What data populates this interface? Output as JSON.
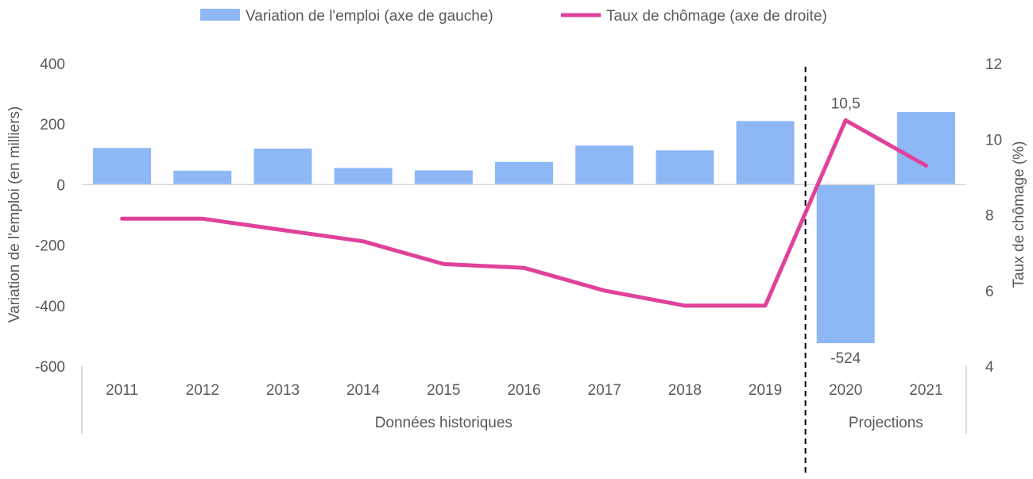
{
  "chart_data": {
    "type": "bar",
    "categories": [
      "2011",
      "2012",
      "2013",
      "2014",
      "2015",
      "2016",
      "2017",
      "2018",
      "2019",
      "2020",
      "2021"
    ],
    "series": [
      {
        "name": "Variation de l'emploi (axe de gauche)",
        "type": "bar",
        "axis": "left",
        "color": "#8db8f5",
        "values": [
          121,
          46,
          119,
          55,
          47,
          75,
          129,
          113,
          210,
          -524,
          240
        ]
      },
      {
        "name": "Taux de chômage (axe de droite)",
        "type": "line",
        "axis": "right",
        "color": "#e0429a",
        "values": [
          7.9,
          7.9,
          7.6,
          7.3,
          6.7,
          6.6,
          6.0,
          5.6,
          5.6,
          10.5,
          9.3
        ]
      }
    ],
    "left_axis": {
      "title": "Variation de l'emploi (en milliers)",
      "range": [
        -600,
        400
      ],
      "ticks": [
        "400",
        "200",
        "0",
        "-200",
        "-400",
        "-600"
      ]
    },
    "right_axis": {
      "title": "Taux de chômage (%)",
      "range": [
        4,
        12
      ],
      "ticks": [
        "12",
        "10",
        "8",
        "6",
        "4"
      ]
    },
    "groups": [
      {
        "label": "Données historiques",
        "from": "2011",
        "to": "2019"
      },
      {
        "label": "Projections",
        "from": "2020",
        "to": "2021"
      }
    ],
    "annotations": [
      {
        "label": "10,5",
        "series": "Taux de chômage (axe de droite)",
        "category": "2020"
      },
      {
        "label": "-524",
        "series": "Variation de l'emploi (axe de gauche)",
        "category": "2020"
      }
    ],
    "legend_position": "top",
    "grid": false,
    "separator": {
      "style": "dashed",
      "between": [
        "2019",
        "2020"
      ]
    }
  }
}
